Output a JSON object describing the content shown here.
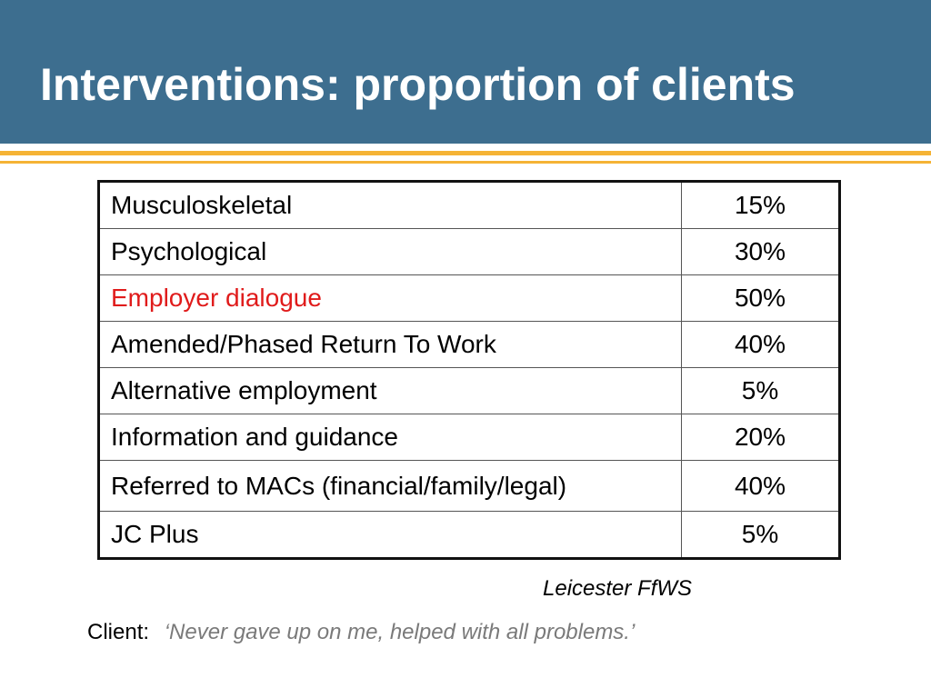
{
  "slide": {
    "title": "Interventions: proportion of clients",
    "colors": {
      "header": "#3d6e8f",
      "stripe": "#f5b335",
      "highlight": "#e01b1b"
    }
  },
  "table": {
    "rows": [
      {
        "label": "Musculoskeletal",
        "value": "15%"
      },
      {
        "label": "Psychological",
        "value": "30%"
      },
      {
        "label": "Employer dialogue",
        "value": "50%",
        "highlight": true
      },
      {
        "label": "Amended/Phased Return To Work",
        "value": "40%"
      },
      {
        "label": "Alternative employment",
        "value": "5%"
      },
      {
        "label": "Information and guidance",
        "value": "20%"
      },
      {
        "label": "Referred to MACs (financial/family/legal)",
        "value": "40%"
      },
      {
        "label": "JC Plus",
        "value": "5%"
      }
    ]
  },
  "source": "Leicester FfWS",
  "quote": {
    "label": "Client:",
    "text": "‘Never gave up on me, helped with all problems.’"
  }
}
